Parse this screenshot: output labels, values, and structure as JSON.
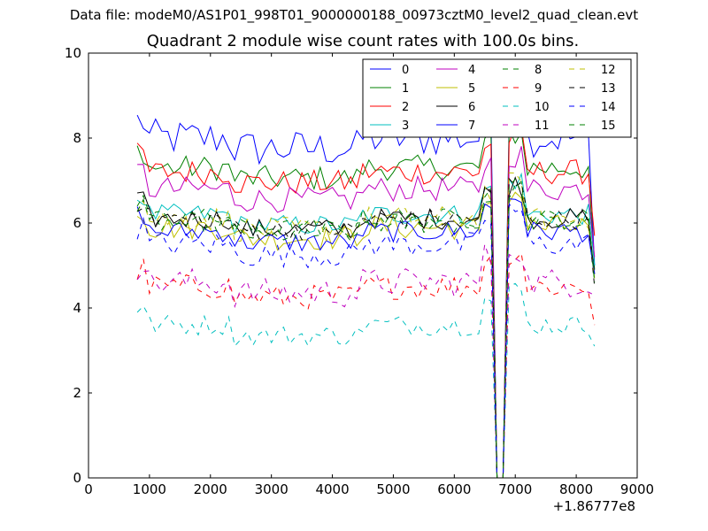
{
  "suptitle": "Data file: modeM0/AS1P01_998T01_9000000188_00973cztM0_level2_quad_clean.evt",
  "chart_data": {
    "type": "line",
    "title": "Quadrant 2 module wise count rates with 100.0s bins.",
    "xlabel": "",
    "ylabel": "",
    "x_offset_label": "+1.86777e8",
    "xlim": [
      0,
      9000
    ],
    "ylim": [
      0,
      10
    ],
    "x_ticks": [
      0,
      1000,
      2000,
      3000,
      4000,
      5000,
      6000,
      7000,
      8000,
      9000
    ],
    "y_ticks": [
      0,
      2,
      4,
      6,
      8,
      10
    ],
    "legend_location": "top-right",
    "legend_columns": 4,
    "gap_start": 6650,
    "gap_end": 6850,
    "series": [
      {
        "name": "0",
        "color": "#0000ff",
        "dash": "solid",
        "level": 8.0,
        "noise": 0.45,
        "end": 5.0
      },
      {
        "name": "1",
        "color": "#008000",
        "dash": "solid",
        "level": 7.3,
        "noise": 0.3,
        "end": 4.9
      },
      {
        "name": "2",
        "color": "#ff0000",
        "dash": "solid",
        "level": 7.2,
        "noise": 0.3,
        "end": 5.7
      },
      {
        "name": "3",
        "color": "#00bfbf",
        "dash": "solid",
        "level": 6.2,
        "noise": 0.25,
        "end": 5.0
      },
      {
        "name": "4",
        "color": "#bf00bf",
        "dash": "solid",
        "level": 6.8,
        "noise": 0.3,
        "end": 5.2
      },
      {
        "name": "5",
        "color": "#bfbf00",
        "dash": "solid",
        "level": 5.9,
        "noise": 0.3,
        "end": 4.7
      },
      {
        "name": "6",
        "color": "#000000",
        "dash": "solid",
        "level": 6.1,
        "noise": 0.25,
        "end": 4.8
      },
      {
        "name": "7",
        "color": "#0000ff",
        "dash": "solid",
        "level": 5.8,
        "noise": 0.25,
        "end": 4.8
      },
      {
        "name": "8",
        "color": "#008000",
        "dash": "dashed",
        "level": 6.0,
        "noise": 0.25,
        "end": 4.6
      },
      {
        "name": "9",
        "color": "#ff0000",
        "dash": "dashed",
        "level": 4.5,
        "noise": 0.3,
        "end": 3.6
      },
      {
        "name": "10",
        "color": "#00bfbf",
        "dash": "dashed",
        "level": 3.6,
        "noise": 0.25,
        "end": 3.1
      },
      {
        "name": "11",
        "color": "#bf00bf",
        "dash": "dashed",
        "level": 4.6,
        "noise": 0.35,
        "end": 4.3
      },
      {
        "name": "12",
        "color": "#bfbf00",
        "dash": "dashed",
        "level": 6.1,
        "noise": 0.3,
        "end": 4.7
      },
      {
        "name": "13",
        "color": "#000000",
        "dash": "dashed",
        "level": 6.1,
        "noise": 0.25,
        "end": 4.5
      },
      {
        "name": "14",
        "color": "#0000ff",
        "dash": "dashed",
        "level": 5.5,
        "noise": 0.3,
        "end": 4.8
      },
      {
        "name": "15",
        "color": "#008000",
        "dash": "dashed",
        "level": 6.1,
        "noise": 0.25,
        "end": 4.6
      }
    ]
  }
}
